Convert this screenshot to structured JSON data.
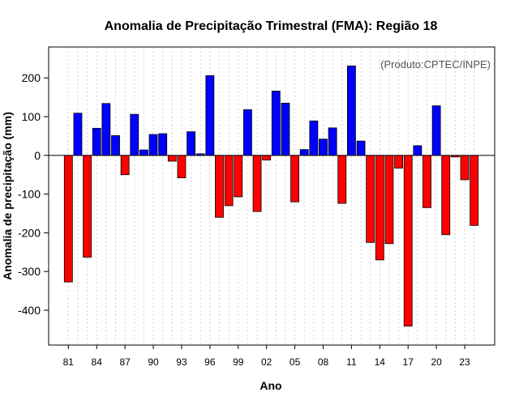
{
  "chart_data": {
    "type": "bar",
    "title": "Anomalia de Precipitação Trimestral (FMA): Região 18",
    "xlabel": "Ano",
    "ylabel": "Anomalia de precipitação (mm)",
    "credit": "(Produto:CPTEC/INPE)",
    "ylim": [
      -490,
      280
    ],
    "yticks": [
      200,
      100,
      0,
      -100,
      -200,
      -300,
      -400
    ],
    "x_tick_years": [
      "81",
      "84",
      "87",
      "90",
      "93",
      "96",
      "99",
      "02",
      "05",
      "08",
      "11",
      "14",
      "17",
      "20",
      "23"
    ],
    "categories": [
      "1981",
      "1982",
      "1983",
      "1984",
      "1985",
      "1986",
      "1987",
      "1988",
      "1989",
      "1990",
      "1991",
      "1992",
      "1993",
      "1994",
      "1995",
      "1996",
      "1997",
      "1998",
      "1999",
      "2000",
      "2001",
      "2002",
      "2003",
      "2004",
      "2005",
      "2006",
      "2007",
      "2008",
      "2009",
      "2010",
      "2011",
      "2012",
      "2013",
      "2014",
      "2015",
      "2016",
      "2017",
      "2018",
      "2019",
      "2020",
      "2021",
      "2022",
      "2023",
      "2024"
    ],
    "values": [
      -327,
      109,
      -263,
      70,
      134,
      51,
      -50,
      106,
      14,
      54,
      56,
      -15,
      -58,
      61,
      4,
      206,
      -160,
      -130,
      -107,
      118,
      -145,
      -12,
      166,
      135,
      -120,
      15,
      89,
      42,
      71,
      -124,
      231,
      37,
      -225,
      -270,
      -228,
      -33,
      -441,
      25,
      -135,
      128,
      -205,
      -4,
      -63,
      -181
    ],
    "positive_color": "#0000ff",
    "negative_color": "#ff0000"
  }
}
